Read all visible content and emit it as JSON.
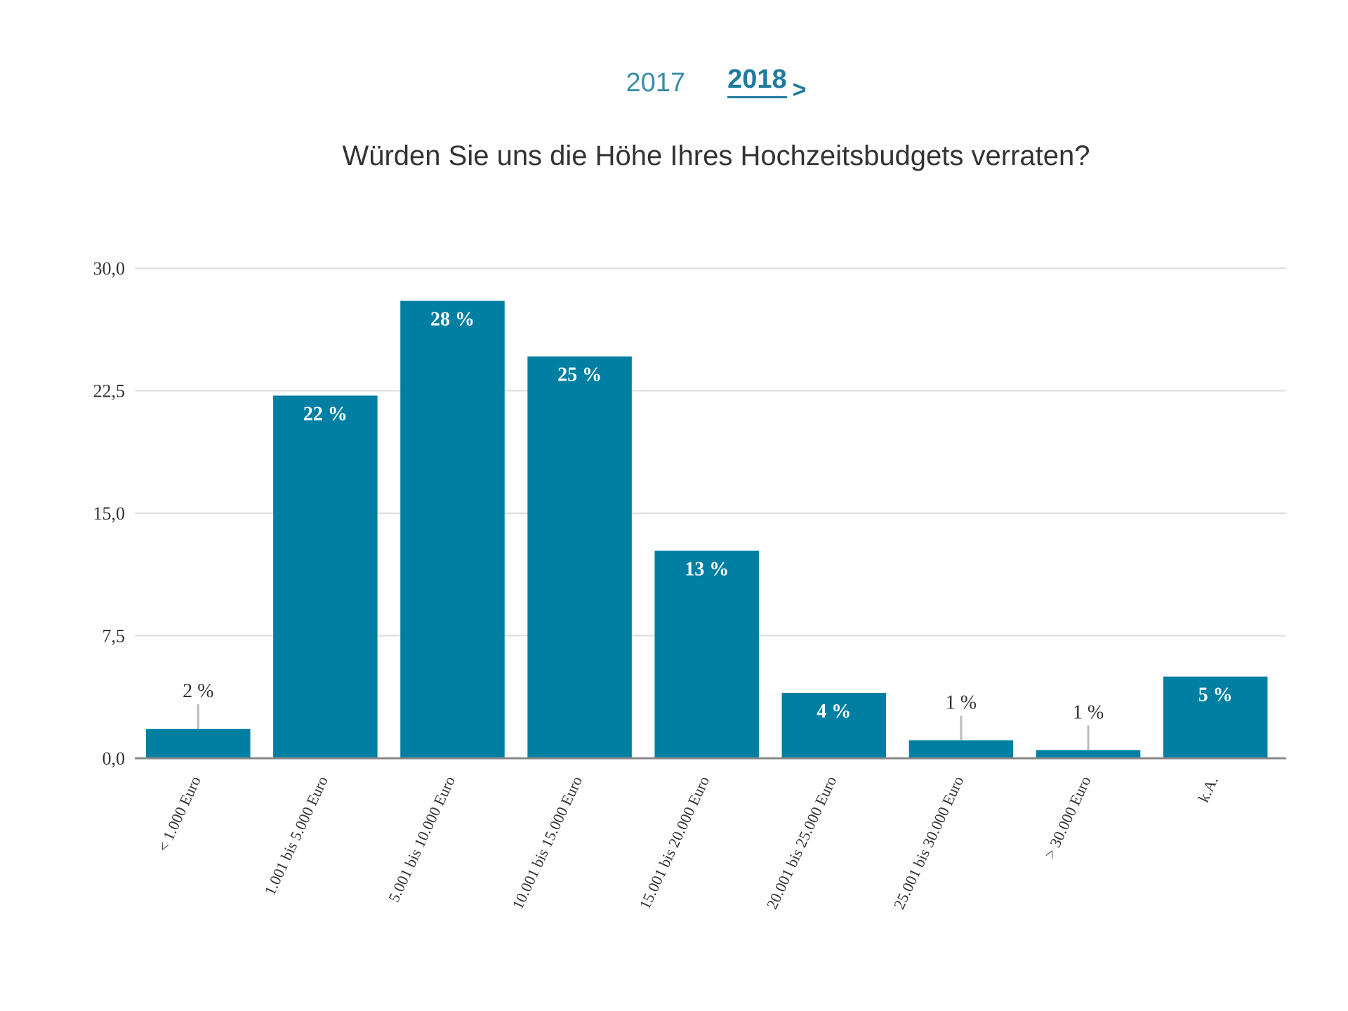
{
  "header": {
    "year_tabs": [
      {
        "label": "2017",
        "active": false
      },
      {
        "label": "2018",
        "active": true
      }
    ],
    "next_glyph": ">"
  },
  "colors": {
    "bar": "#007fa3",
    "grid": "#dddddd",
    "axis": "#888888",
    "leader": "#bbbbbb"
  },
  "chart_data": {
    "type": "bar",
    "title": "Würden Sie uns die Höhe Ihres Hochzeitsbudgets verraten?",
    "xlabel": "",
    "ylabel": "",
    "ylim": [
      0,
      30
    ],
    "yticks": [
      0,
      7.5,
      15,
      22.5,
      30
    ],
    "ytick_labels": [
      "0,0",
      "7,5",
      "15,0",
      "22,5",
      "30,0"
    ],
    "grid": true,
    "categories": [
      "< 1.000 Euro",
      "1.001 bis 5.000 Euro",
      "5.001 bis 10.000 Euro",
      "10.001 bis 15.000 Euro",
      "15.001 bis 20.000 Euro",
      "20.001 bis 25.000 Euro",
      "25.001 bis 30.000 Euro",
      "> 30.000 Euro",
      "k.A."
    ],
    "values": [
      1.8,
      22.2,
      28.0,
      24.6,
      12.7,
      4.0,
      1.1,
      0.5,
      5.0
    ],
    "data_labels": [
      "2 %",
      "22 %",
      "28 %",
      "25 %",
      "13 %",
      "4 %",
      "1 %",
      "1 %",
      "5 %"
    ]
  }
}
